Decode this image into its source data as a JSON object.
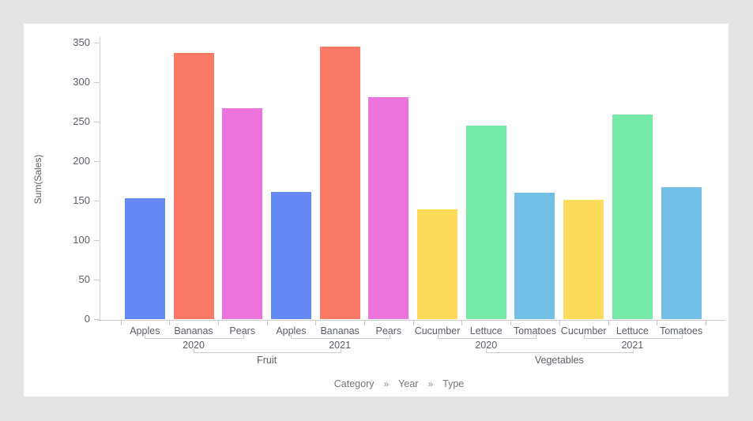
{
  "palette": {
    "background": "#e4e4e4",
    "panel": "#ffffff",
    "axis_line": "#cccccc",
    "text": "#5a5e66",
    "footer_text": "#73767c"
  },
  "chart_data": {
    "type": "bar",
    "title": "",
    "ylabel": "Sum(Sales)",
    "ylim": [
      0,
      350
    ],
    "yticks": [
      0,
      50,
      100,
      150,
      200,
      250,
      300,
      350
    ],
    "grid": false,
    "legend_position": "none",
    "hierarchy_levels": [
      "Category",
      "Year",
      "Type"
    ],
    "hierarchy_separator": "»",
    "series_colors": {
      "Apples": "#6489f3",
      "Bananas": "#fa7a66",
      "Pears": "#ed74dc",
      "Cucumber": "#fedc5b",
      "Lettuce": "#75e9a6",
      "Tomatoes": "#72c0e8"
    },
    "categories": [
      {
        "label": "Fruit",
        "years": [
          {
            "label": "2020",
            "items": [
              {
                "type": "Apples",
                "value": 153
              },
              {
                "type": "Bananas",
                "value": 337
              },
              {
                "type": "Pears",
                "value": 267
              }
            ]
          },
          {
            "label": "2021",
            "items": [
              {
                "type": "Apples",
                "value": 161
              },
              {
                "type": "Bananas",
                "value": 345
              },
              {
                "type": "Pears",
                "value": 281
              }
            ]
          }
        ]
      },
      {
        "label": "Vegetables",
        "years": [
          {
            "label": "2020",
            "items": [
              {
                "type": "Cucumber",
                "value": 139
              },
              {
                "type": "Lettuce",
                "value": 245
              },
              {
                "type": "Tomatoes",
                "value": 160
              }
            ]
          },
          {
            "label": "2021",
            "items": [
              {
                "type": "Cucumber",
                "value": 151
              },
              {
                "type": "Lettuce",
                "value": 259
              },
              {
                "type": "Tomatoes",
                "value": 167
              }
            ]
          }
        ]
      }
    ]
  }
}
